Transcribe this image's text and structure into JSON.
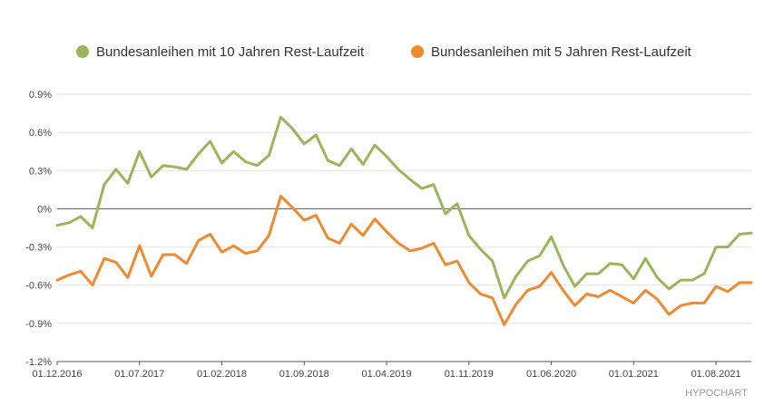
{
  "chart_data": {
    "type": "line",
    "title": "",
    "xlabel": "",
    "ylabel": "",
    "ylim": [
      -1.2,
      0.9
    ],
    "grid": true,
    "legend_position": "top-center",
    "y_ticks": [
      {
        "value": 0.9,
        "label": "0.9%"
      },
      {
        "value": 0.6,
        "label": "0.6%"
      },
      {
        "value": 0.3,
        "label": "0.3%"
      },
      {
        "value": 0.0,
        "label": "0%"
      },
      {
        "value": -0.3,
        "label": "-0.3%"
      },
      {
        "value": -0.6,
        "label": "-0.6%"
      },
      {
        "value": -0.9,
        "label": "-0.9%"
      },
      {
        "value": -1.2,
        "label": "-1.2%"
      }
    ],
    "x_ticks": [
      {
        "index": 0,
        "label": "01.12.2016"
      },
      {
        "index": 7,
        "label": "01.07.2017"
      },
      {
        "index": 14,
        "label": "01.02.2018"
      },
      {
        "index": 21,
        "label": "01.09.2018"
      },
      {
        "index": 28,
        "label": "01.04.2019"
      },
      {
        "index": 35,
        "label": "01.11.2019"
      },
      {
        "index": 42,
        "label": "01.06.2020"
      },
      {
        "index": 49,
        "label": "01.01.2021"
      },
      {
        "index": 56,
        "label": "01.08.2021"
      }
    ],
    "x_start": "2016-12-01",
    "x_end": "2021-12-01",
    "series": [
      {
        "name": "Bundesanleihen mit 10 Jahren Rest-Laufzeit",
        "color": "#9bb55b",
        "values": [
          -0.13,
          -0.11,
          -0.06,
          -0.15,
          0.19,
          0.31,
          0.2,
          0.45,
          0.25,
          0.34,
          0.33,
          0.31,
          0.43,
          0.53,
          0.36,
          0.45,
          0.37,
          0.34,
          0.42,
          0.72,
          0.63,
          0.51,
          0.58,
          0.38,
          0.34,
          0.47,
          0.35,
          0.5,
          0.41,
          0.31,
          0.23,
          0.16,
          0.19,
          -0.04,
          0.04,
          -0.21,
          -0.32,
          -0.41,
          -0.7,
          -0.53,
          -0.41,
          -0.37,
          -0.22,
          -0.44,
          -0.61,
          -0.51,
          -0.51,
          -0.43,
          -0.44,
          -0.55,
          -0.39,
          -0.54,
          -0.63,
          -0.56,
          -0.56,
          -0.51,
          -0.3,
          -0.3,
          -0.2,
          -0.19
        ]
      },
      {
        "name": "Bundesanleihen mit 5 Jahren Rest-Laufzeit",
        "color": "#f08a30",
        "values": [
          -0.56,
          -0.52,
          -0.49,
          -0.6,
          -0.39,
          -0.42,
          -0.54,
          -0.29,
          -0.53,
          -0.36,
          -0.36,
          -0.43,
          -0.25,
          -0.2,
          -0.34,
          -0.29,
          -0.35,
          -0.33,
          -0.21,
          0.1,
          0.01,
          -0.09,
          -0.05,
          -0.23,
          -0.27,
          -0.12,
          -0.21,
          -0.08,
          -0.18,
          -0.27,
          -0.33,
          -0.31,
          -0.27,
          -0.44,
          -0.41,
          -0.58,
          -0.67,
          -0.7,
          -0.91,
          -0.75,
          -0.64,
          -0.61,
          -0.5,
          -0.64,
          -0.76,
          -0.67,
          -0.69,
          -0.64,
          -0.69,
          -0.74,
          -0.64,
          -0.71,
          -0.83,
          -0.76,
          -0.74,
          -0.74,
          -0.61,
          -0.65,
          -0.58,
          -0.58
        ]
      }
    ]
  },
  "credit": "HYPOCHART"
}
